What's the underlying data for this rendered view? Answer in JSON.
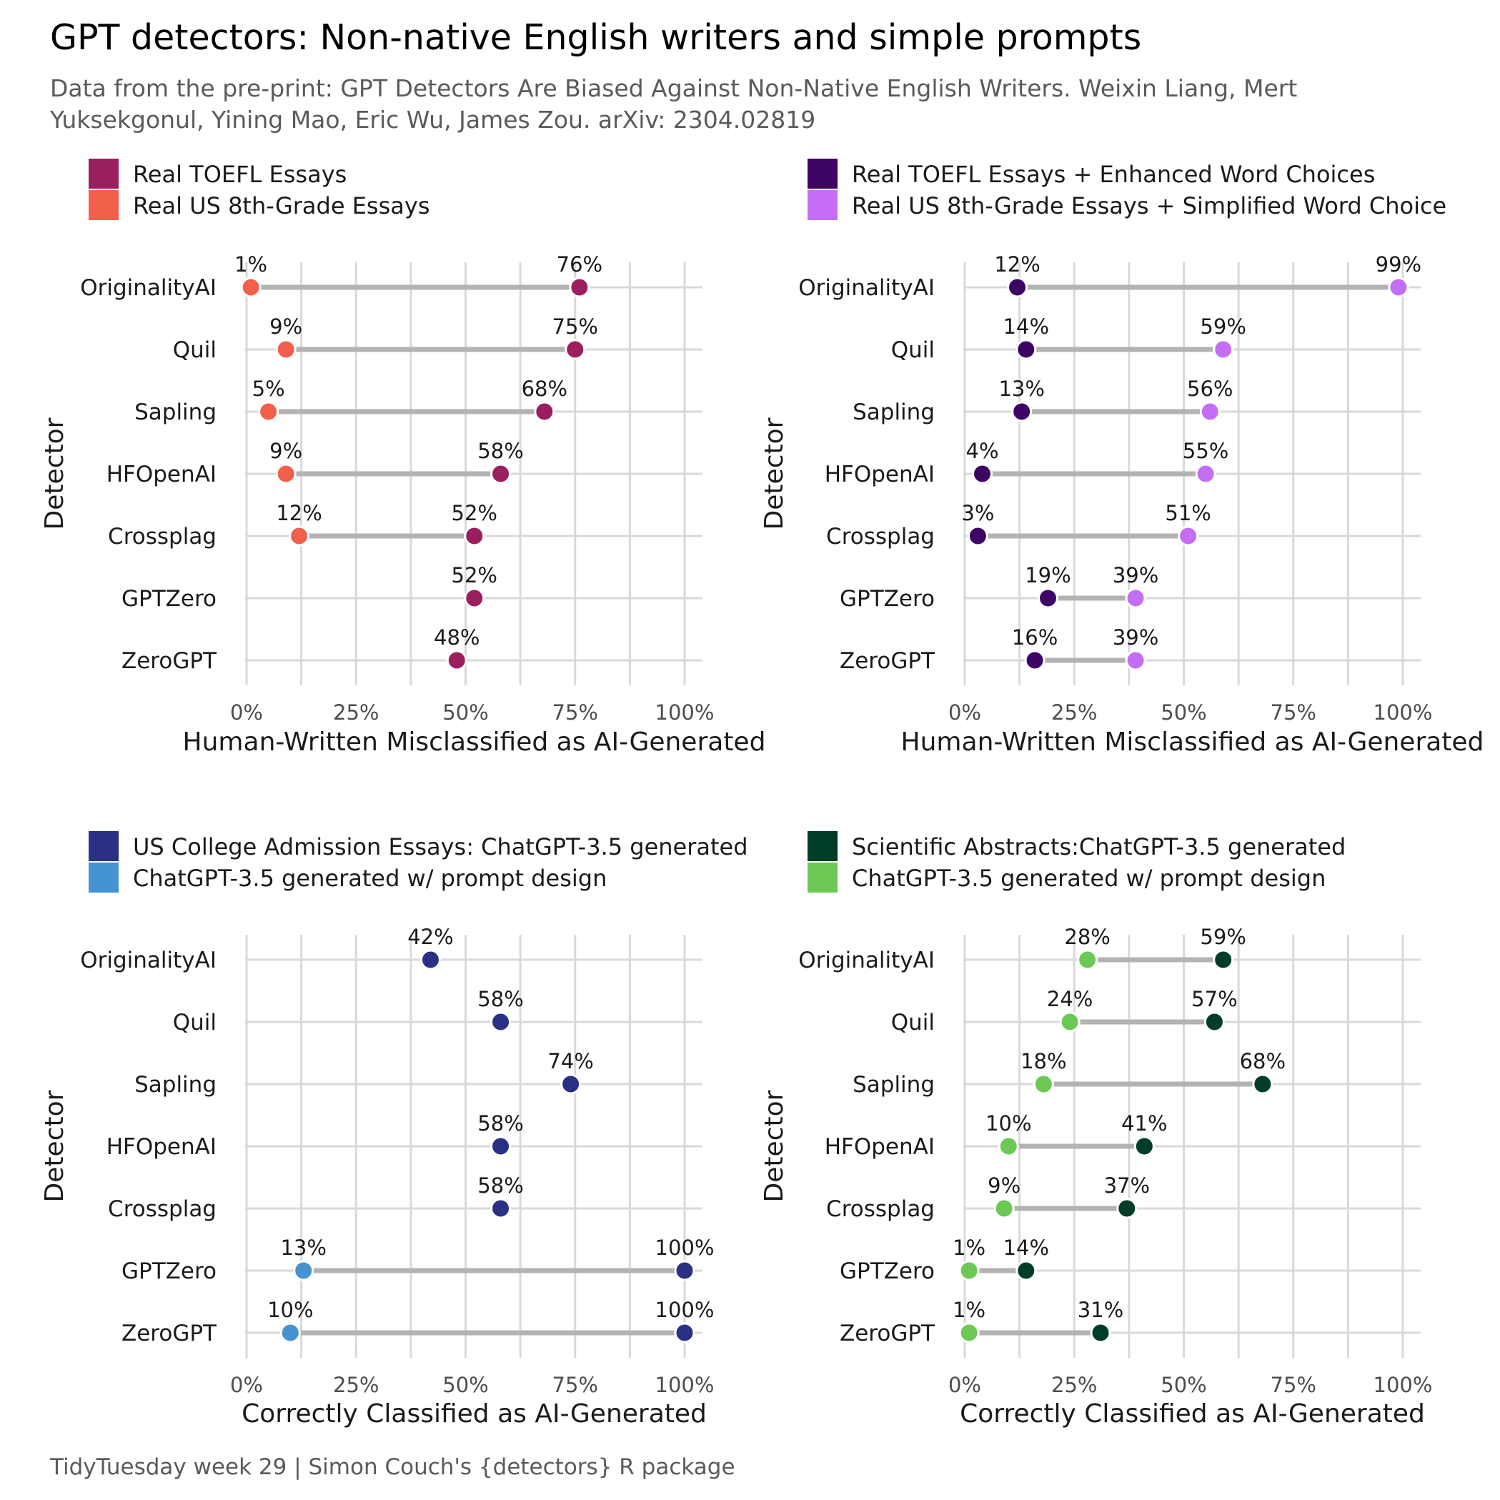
{
  "title": "GPT detectors: Non-native English writers and simple prompts",
  "subtitle": "Data from the pre-print: GPT Detectors Are Biased Against Non-Native English Writers. Weixin Liang, Mert Yuksekgonul, Yining Mao, Eric Wu, James Zou. arXiv: 2304.02819",
  "caption": "TidyTuesday week 29 | Simon Couch's {detectors} R package",
  "chart_data": [
    {
      "type": "dumbbell",
      "categories": [
        "OriginalityAI",
        "Quil",
        "Sapling",
        "HFOpenAI",
        "Crossplag",
        "GPTZero",
        "ZeroGPT"
      ],
      "xlabel": "Human-Written Misclassified as AI-Generated",
      "ylabel": "Detector",
      "xlim": [
        0,
        100
      ],
      "xticks": [
        "0%",
        "25%",
        "50%",
        "75%",
        "100%"
      ],
      "grid": true,
      "legend_position": "top",
      "series": [
        {
          "name": "Real TOEFL Essays",
          "color": "#9b1f5e",
          "values": [
            76,
            75,
            68,
            58,
            52,
            52,
            48
          ],
          "labels": [
            "76%",
            "75%",
            "68%",
            "58%",
            "52%",
            "52%",
            "48%"
          ]
        },
        {
          "name": "Real US 8th-Grade Essays",
          "color": "#f2604b",
          "values": [
            1,
            9,
            5,
            9,
            12,
            null,
            null
          ],
          "labels": [
            "1%",
            "9%",
            "5%",
            "9%",
            "12%",
            "",
            ""
          ]
        }
      ]
    },
    {
      "type": "dumbbell",
      "categories": [
        "OriginalityAI",
        "Quil",
        "Sapling",
        "HFOpenAI",
        "Crossplag",
        "GPTZero",
        "ZeroGPT"
      ],
      "xlabel": "Human-Written Misclassified as AI-Generated",
      "ylabel": "Detector",
      "xlim": [
        0,
        100
      ],
      "xticks": [
        "0%",
        "25%",
        "50%",
        "75%",
        "100%"
      ],
      "grid": true,
      "legend_position": "top",
      "series": [
        {
          "name": "Real TOEFL Essays + Enhanced Word Choices",
          "color": "#3d0466",
          "values": [
            12,
            14,
            13,
            4,
            3,
            19,
            16
          ],
          "labels": [
            "12%",
            "14%",
            "13%",
            "4%",
            "3%",
            "19%",
            "16%"
          ]
        },
        {
          "name": "Real US 8th-Grade Essays + Simplified Word Choice",
          "color": "#c56ef5",
          "values": [
            99,
            59,
            56,
            55,
            51,
            39,
            39
          ],
          "labels": [
            "99%",
            "59%",
            "56%",
            "55%",
            "51%",
            "39%",
            "39%"
          ]
        }
      ]
    },
    {
      "type": "dumbbell",
      "categories": [
        "OriginalityAI",
        "Quil",
        "Sapling",
        "HFOpenAI",
        "Crossplag",
        "GPTZero",
        "ZeroGPT"
      ],
      "xlabel": "Correctly Classified as AI-Generated",
      "ylabel": "Detector",
      "xlim": [
        0,
        100
      ],
      "xticks": [
        "0%",
        "25%",
        "50%",
        "75%",
        "100%"
      ],
      "grid": true,
      "legend_position": "top",
      "series": [
        {
          "name": "US College Admission Essays: ChatGPT-3.5 generated",
          "color": "#2a3185",
          "values": [
            42,
            58,
            74,
            58,
            58,
            100,
            100
          ],
          "labels": [
            "42%",
            "58%",
            "74%",
            "58%",
            "58%",
            "100%",
            "100%"
          ]
        },
        {
          "name": "ChatGPT-3.5 generated w/ prompt design",
          "color": "#4493d2",
          "values": [
            null,
            null,
            null,
            null,
            null,
            13,
            10
          ],
          "labels": [
            "",
            "",
            "",
            "",
            "",
            "13%",
            "10%"
          ]
        }
      ]
    },
    {
      "type": "dumbbell",
      "categories": [
        "OriginalityAI",
        "Quil",
        "Sapling",
        "HFOpenAI",
        "Crossplag",
        "GPTZero",
        "ZeroGPT"
      ],
      "xlabel": "Correctly Classified as AI-Generated",
      "ylabel": "Detector",
      "xlim": [
        0,
        100
      ],
      "xticks": [
        "0%",
        "25%",
        "50%",
        "75%",
        "100%"
      ],
      "grid": true,
      "legend_position": "top",
      "series": [
        {
          "name": "Scientific Abstracts:ChatGPT-3.5 generated",
          "color": "#003d27",
          "values": [
            59,
            57,
            68,
            41,
            37,
            14,
            31
          ],
          "labels": [
            "59%",
            "57%",
            "68%",
            "41%",
            "37%",
            "14%",
            "31%"
          ]
        },
        {
          "name": "ChatGPT-3.5 generated w/ prompt design",
          "color": "#6cc854",
          "values": [
            28,
            24,
            18,
            10,
            9,
            1,
            1
          ],
          "labels": [
            "28%",
            "24%",
            "18%",
            "10%",
            "9%",
            "1%",
            "1%"
          ]
        }
      ]
    }
  ]
}
